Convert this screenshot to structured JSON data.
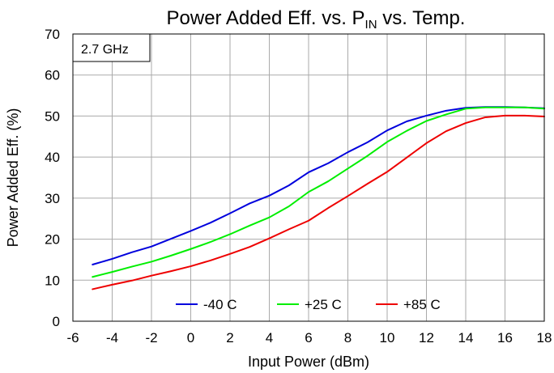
{
  "chart_data": {
    "type": "line",
    "title_main": "Power Added Eff. vs. P",
    "title_sub": "IN",
    "title_end": " vs. Temp.",
    "xlabel": "Input Power (dBm)",
    "ylabel": "Power Added Eff. (%)",
    "xlim": [
      -6,
      18
    ],
    "ylim": [
      0,
      70
    ],
    "xticks": [
      "-6",
      "-4",
      "-2",
      "0",
      "2",
      "4",
      "6",
      "8",
      "10",
      "12",
      "14",
      "16",
      "18"
    ],
    "yticks": [
      "0",
      "10",
      "20",
      "30",
      "40",
      "50",
      "60",
      "70"
    ],
    "grid": true,
    "legend_position": "bottom-center",
    "annotation": "2.7 GHz",
    "x": [
      -5,
      -4,
      -3,
      -2,
      -1,
      0,
      1,
      2,
      3,
      4,
      5,
      6,
      7,
      8,
      9,
      10,
      11,
      12,
      13,
      14,
      15,
      16,
      17,
      18
    ],
    "series": [
      {
        "name": "-40 C",
        "color": "#0000dd",
        "values": [
          13.8,
          15.2,
          16.8,
          18.2,
          20.1,
          22.0,
          24.0,
          26.3,
          28.7,
          30.6,
          33.1,
          36.3,
          38.5,
          41.2,
          43.6,
          46.5,
          48.7,
          50.1,
          51.3,
          52.0,
          52.2,
          52.2,
          52.1,
          51.9
        ]
      },
      {
        "name": "+25 C",
        "color": "#00ee00",
        "values": [
          10.8,
          12.0,
          13.3,
          14.5,
          16.0,
          17.6,
          19.3,
          21.2,
          23.3,
          25.3,
          28.0,
          31.5,
          34.1,
          37.2,
          40.3,
          43.7,
          46.4,
          48.8,
          50.4,
          51.8,
          52.1,
          52.1,
          52.1,
          51.8
        ]
      },
      {
        "name": "+85 C",
        "color": "#ee0000",
        "values": [
          7.8,
          8.9,
          9.9,
          11.1,
          12.2,
          13.4,
          14.8,
          16.4,
          18.1,
          20.2,
          22.4,
          24.5,
          27.6,
          30.5,
          33.5,
          36.4,
          39.9,
          43.4,
          46.3,
          48.3,
          49.7,
          50.1,
          50.1,
          49.9
        ]
      }
    ]
  }
}
